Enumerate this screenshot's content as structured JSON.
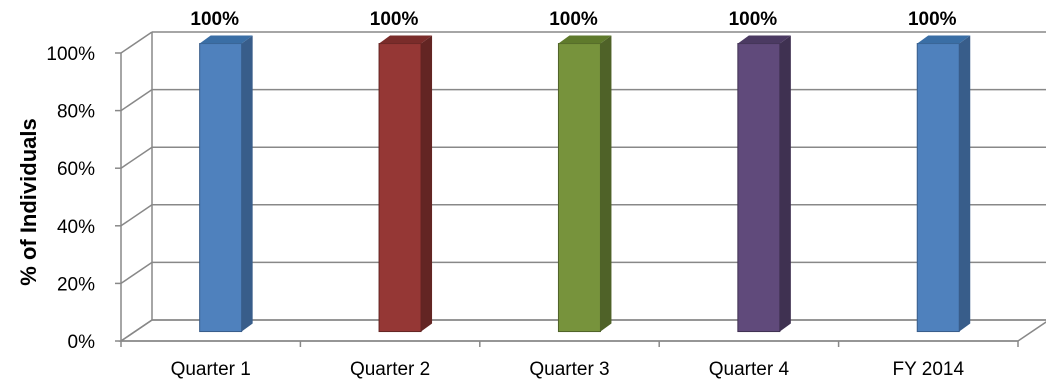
{
  "chart_data": {
    "type": "bar",
    "style": "3d-column",
    "categories": [
      "Quarter 1",
      "Quarter 2",
      "Quarter 3",
      "Quarter 4",
      "FY 2014"
    ],
    "values": [
      100,
      100,
      100,
      100,
      100
    ],
    "data_labels": [
      "100%",
      "100%",
      "100%",
      "100%",
      "100%"
    ],
    "ylabel": "% of Individuals",
    "xlabel": "",
    "ylim": [
      0,
      100
    ],
    "yticks": [
      0,
      20,
      40,
      60,
      80,
      100
    ],
    "ytick_labels": [
      "0%",
      "20%",
      "40%",
      "60%",
      "80%",
      "100%"
    ],
    "grid": true,
    "legend": "none",
    "bar_colors": [
      "#4f81bd",
      "#953735",
      "#77933c",
      "#604a7b",
      "#4f81bd"
    ],
    "bar_side_colors": [
      "#385d8a",
      "#632523",
      "#4f6228",
      "#3f3151",
      "#385d8a"
    ],
    "bar_top_colors": [
      "#3a6ea5",
      "#7a2c2a",
      "#5f7a2c",
      "#4b3a62",
      "#3a6ea5"
    ]
  }
}
